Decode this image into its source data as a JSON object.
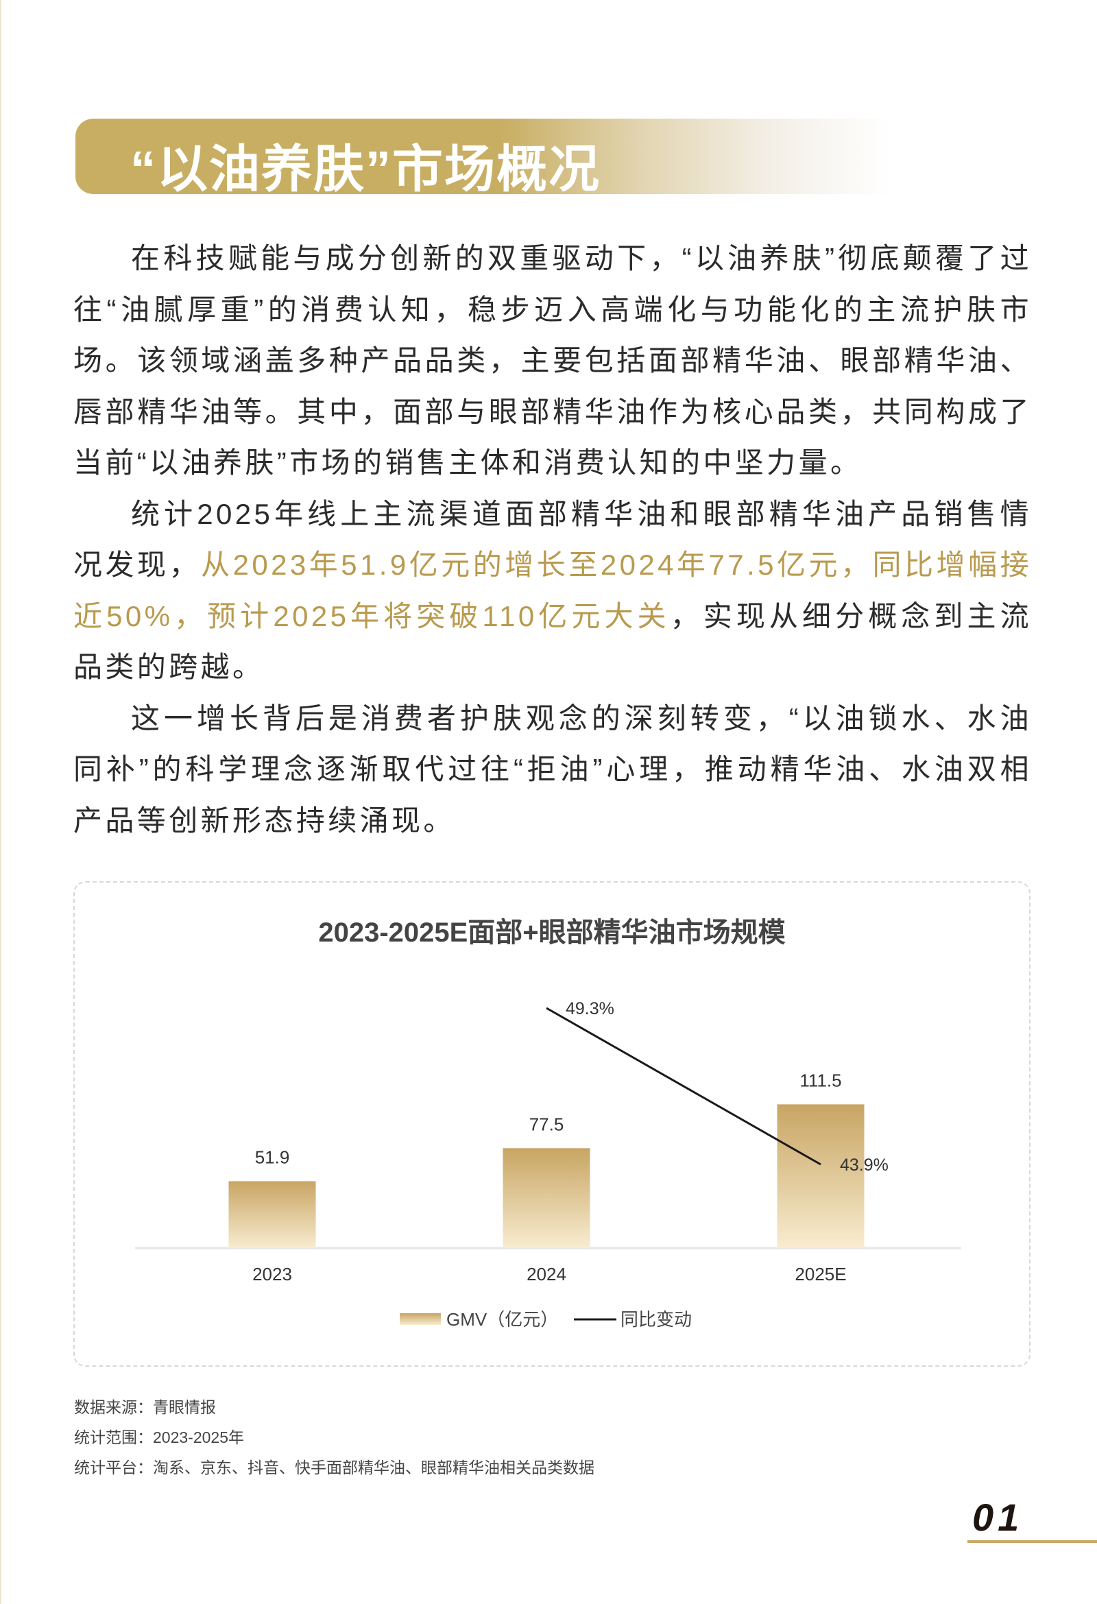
{
  "section_title": "“以油养肤”市场概况",
  "paragraphs": [
    {
      "parts": [
        {
          "text": "在科技赋能与成分创新的双重驱动下，“以油养肤”彻底颠覆了过往“油腻厚重”的消费认知，稳步迈入高端化与功能化的主流护肤市场。该领域涵盖多种产品品类，主要包括面部精华油、眼部精华油、唇部精华油等。其中，面部与眼部精华油作为核心品类，共同构成了当前“以油养肤”市场的销售主体和消费认知的中坚力量。",
          "highlight": false
        }
      ]
    },
    {
      "parts": [
        {
          "text": "统计2025年线上主流渠道面部精华油和眼部精华油产品销售情况发现，",
          "highlight": false
        },
        {
          "text": "从2023年51.9亿元的增长至2024年77.5亿元，同比增幅接近50%，预计2025年将突破110亿元大关",
          "highlight": true
        },
        {
          "text": "，实现从细分概念到主流品类的跨越。",
          "highlight": false
        }
      ]
    },
    {
      "parts": [
        {
          "text": "这一增长背后是消费者护肤观念的深刻转变，“以油锁水、水油同补”的科学理念逐渐取代过往“拒油”心理，推动精华油、水油双相产品等创新形态持续涌现。",
          "highlight": false
        }
      ]
    }
  ],
  "colors": {
    "accent": "#c8ae62",
    "highlight_text": "#b99a4e",
    "bar_top": "#c8a563",
    "bar_bottom": "#f8ecd0",
    "line": "#1a1a1a"
  },
  "chart_data": {
    "type": "bar+line",
    "title": "2023-2025E面部+眼部精华油市场规模",
    "categories": [
      "2023",
      "2024",
      "2025E"
    ],
    "series": [
      {
        "name": "GMV（亿元）",
        "type": "bar",
        "values": [
          51.9,
          77.5,
          111.5
        ],
        "labels": [
          "51.9",
          "77.5",
          "111.5"
        ]
      },
      {
        "name": "同比变动",
        "type": "line",
        "values": [
          null,
          49.3,
          43.9
        ],
        "labels": [
          "",
          "49.3%",
          "43.9%"
        ]
      }
    ],
    "legend_position": "bottom",
    "grid": false
  },
  "sources": [
    "数据来源：青眼情报",
    "统计范围：2023-2025年",
    "统计平台：淘系、京东、抖音、快手面部精华油、眼部精华油相关品类数据"
  ],
  "page_number": "01"
}
